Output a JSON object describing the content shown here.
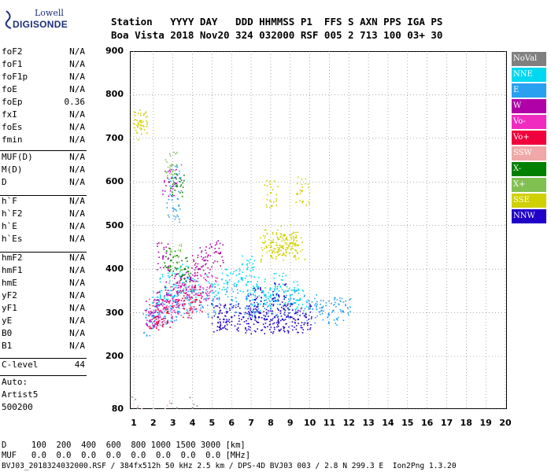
{
  "logo": {
    "line1": "Lowell",
    "line2": "DIGISONDE"
  },
  "header": {
    "line1": "Station   YYYY DAY   DDD HHMMSS P1  FFS S AXN PPS IGA PS",
    "line2": "Boa Vista 2018 Nov20 324 032000 RSF 005 2 713 100 03+ 30"
  },
  "params": {
    "group1": [
      {
        "name": "foF2",
        "value": "N/A"
      },
      {
        "name": "foF1",
        "value": "N/A"
      },
      {
        "name": "foF1p",
        "value": "N/A"
      },
      {
        "name": "foE",
        "value": "N/A"
      },
      {
        "name": "foEp",
        "value": "0.36"
      },
      {
        "name": "fxI",
        "value": "N/A"
      },
      {
        "name": "foEs",
        "value": "N/A"
      },
      {
        "name": "fmin",
        "value": "N/A"
      }
    ],
    "group2": [
      {
        "name": "MUF(D)",
        "value": "N/A"
      },
      {
        "name": "M(D)",
        "value": "N/A"
      },
      {
        "name": "D",
        "value": "N/A"
      }
    ],
    "group3": [
      {
        "name": "h`F",
        "value": "N/A"
      },
      {
        "name": "h`F2",
        "value": "N/A"
      },
      {
        "name": "h`E",
        "value": "N/A"
      },
      {
        "name": "h`Es",
        "value": "N/A"
      }
    ],
    "group4": [
      {
        "name": "hmF2",
        "value": "N/A"
      },
      {
        "name": "hmF1",
        "value": "N/A"
      },
      {
        "name": "hmE",
        "value": "N/A"
      },
      {
        "name": "yF2",
        "value": "N/A"
      },
      {
        "name": "yF1",
        "value": "N/A"
      },
      {
        "name": "yE",
        "value": "N/A"
      },
      {
        "name": "B0",
        "value": "N/A"
      },
      {
        "name": "B1",
        "value": "N/A"
      }
    ],
    "clevel": {
      "name": "C-level",
      "value": "44"
    },
    "auto": [
      "Auto:",
      "Artist5",
      "500200"
    ]
  },
  "legend": [
    {
      "label": "NoVal",
      "color": "#808080"
    },
    {
      "label": "NNE",
      "color": "#00d8f0"
    },
    {
      "label": "E",
      "color": "#2aa0f0"
    },
    {
      "label": "W",
      "color": "#b000a8"
    },
    {
      "label": "Vo-",
      "color": "#f02cc0"
    },
    {
      "label": "Vo+",
      "color": "#f0003c"
    },
    {
      "label": "SSW",
      "color": "#f0a8a8"
    },
    {
      "label": "X-",
      "color": "#008000"
    },
    {
      "label": "X+",
      "color": "#80c050"
    },
    {
      "label": "SSE",
      "color": "#d0d000"
    },
    {
      "label": "NNW",
      "color": "#2000c8"
    }
  ],
  "footer": {
    "line1": "D     100  200  400  600  800 1000 1500 3000 [km]",
    "line2": "MUF   0.0  0.0  0.0  0.0  0.0  0.0  0.0  0.0 [MHz]",
    "line3": "BVJ03_2018324032000.RSF / 384fx512h 50 kHz 2.5 km / DPS-4D BVJ03 003 / 2.8 N 299.3 E  Ion2Png 1.3.20"
  },
  "chart_data": {
    "type": "scatter",
    "x_ticks": [
      "1",
      "2",
      "3",
      "4",
      "5",
      "6",
      "7",
      "8",
      "9",
      "10",
      "11",
      "12",
      "13",
      "14",
      "15",
      "16",
      "17",
      "18",
      "19",
      "20"
    ],
    "y_ticks": [
      "80",
      "200",
      "300",
      "400",
      "500",
      "600",
      "700",
      "800",
      "900"
    ],
    "xlim": [
      1,
      20
    ],
    "ylim": [
      80,
      900
    ],
    "grid": true,
    "legend_position": "right",
    "series": [
      {
        "name": "NNE",
        "color": "#00d8f0",
        "points": [
          [
            2.2,
            320
          ],
          [
            3.0,
            335
          ],
          [
            4.0,
            350
          ],
          [
            5.0,
            360
          ],
          [
            5.8,
            370
          ],
          [
            6.5,
            380
          ],
          [
            7.1,
            330
          ],
          [
            7.6,
            350
          ],
          [
            8.0,
            340
          ],
          [
            8.5,
            360
          ],
          [
            9.0,
            340
          ],
          [
            9.5,
            330
          ],
          [
            2.6,
            360
          ],
          [
            3.4,
            380
          ],
          [
            6.8,
            400
          ]
        ]
      },
      {
        "name": "E",
        "color": "#2aa0f0",
        "points": [
          [
            1.8,
            280
          ],
          [
            2.3,
            300
          ],
          [
            2.9,
            310
          ],
          [
            3.5,
            320
          ],
          [
            4.2,
            330
          ],
          [
            5.0,
            320
          ],
          [
            6.0,
            330
          ],
          [
            7.0,
            320
          ],
          [
            8.0,
            310
          ],
          [
            9.0,
            320
          ],
          [
            10.0,
            310
          ],
          [
            10.6,
            305
          ],
          [
            11.2,
            305
          ],
          [
            11.7,
            303
          ],
          [
            3.0,
            540
          ],
          [
            3.1,
            610
          ]
        ]
      },
      {
        "name": "W",
        "color": "#b000a8",
        "points": [
          [
            1.9,
            300
          ],
          [
            2.4,
            320
          ],
          [
            2.9,
            340
          ],
          [
            3.4,
            360
          ],
          [
            3.9,
            380
          ],
          [
            4.3,
            400
          ],
          [
            4.6,
            420
          ],
          [
            5.2,
            440
          ],
          [
            2.5,
            430
          ],
          [
            2.8,
            600
          ]
        ]
      },
      {
        "name": "Vo-",
        "color": "#f02cc0",
        "points": [
          [
            2.0,
            300
          ],
          [
            2.6,
            310
          ],
          [
            3.2,
            330
          ],
          [
            3.8,
            340
          ],
          [
            4.4,
            360
          ],
          [
            4.9,
            360
          ]
        ]
      },
      {
        "name": "Vo+",
        "color": "#f0003c",
        "points": [
          [
            2.1,
            290
          ],
          [
            2.7,
            300
          ],
          [
            3.6,
            320
          ],
          [
            4.2,
            330
          ]
        ]
      },
      {
        "name": "X-",
        "color": "#008000",
        "points": [
          [
            2.9,
            420
          ],
          [
            3.2,
            590
          ],
          [
            3.6,
            400
          ]
        ]
      },
      {
        "name": "X+",
        "color": "#80c050",
        "points": [
          [
            3.1,
            430
          ],
          [
            2.95,
            640
          ]
        ]
      },
      {
        "name": "SSE",
        "color": "#d0d000",
        "points": [
          [
            1.3,
            740
          ],
          [
            1.35,
            730
          ],
          [
            7.8,
            450
          ],
          [
            8.0,
            460
          ],
          [
            8.3,
            455
          ],
          [
            8.6,
            450
          ],
          [
            9.0,
            460
          ],
          [
            9.4,
            455
          ],
          [
            8.8,
            470
          ],
          [
            9.6,
            580
          ],
          [
            8.0,
            575
          ]
        ]
      },
      {
        "name": "NNW",
        "color": "#2000c8",
        "points": [
          [
            5.3,
            290
          ],
          [
            5.6,
            285
          ],
          [
            6.0,
            290
          ],
          [
            6.6,
            290
          ],
          [
            7.0,
            285
          ],
          [
            7.4,
            290
          ],
          [
            7.8,
            285
          ],
          [
            8.2,
            290
          ],
          [
            8.6,
            285
          ],
          [
            9.0,
            290
          ],
          [
            9.4,
            285
          ],
          [
            9.8,
            290
          ],
          [
            7.2,
            330
          ],
          [
            8.4,
            340
          ]
        ]
      },
      {
        "name": "SSW",
        "color": "#f0a8a8",
        "points": [
          [
            1.4,
            80
          ],
          [
            2.0,
            80
          ],
          [
            2.6,
            80
          ]
        ]
      },
      {
        "name": "NoVal",
        "color": "#808080",
        "points": [
          [
            1.2,
            82
          ],
          [
            3.2,
            82
          ],
          [
            4.0,
            82
          ]
        ]
      }
    ]
  }
}
